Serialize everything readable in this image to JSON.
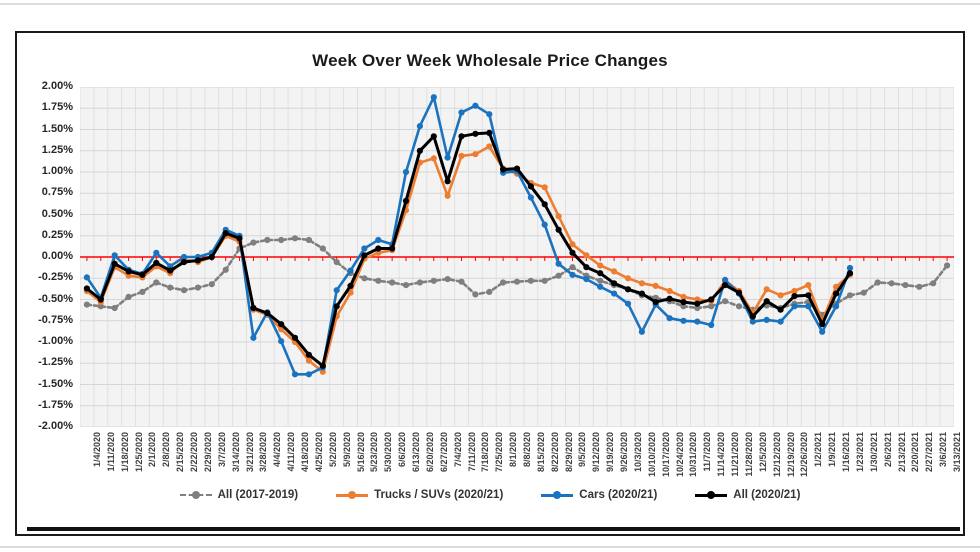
{
  "chart_data": {
    "type": "line",
    "title": "Week Over Week Wholesale Price Changes",
    "ylim": [
      -2.0,
      2.0
    ],
    "grid": true,
    "legend_position": "bottom",
    "zero_line_color": "#ff0000",
    "yticks": [
      "2.00%",
      "1.75%",
      "1.50%",
      "1.25%",
      "1.00%",
      "0.75%",
      "0.50%",
      "0.25%",
      "0.00%",
      "-0.25%",
      "-0.50%",
      "-0.75%",
      "-1.00%",
      "-1.25%",
      "-1.50%",
      "-1.75%",
      "-2.00%"
    ],
    "categories": [
      "1/4/2020",
      "1/11/2020",
      "1/18/2020",
      "1/25/2020",
      "2/1/2020",
      "2/8/2020",
      "2/15/2020",
      "2/22/2020",
      "2/29/2020",
      "3/7/2020",
      "3/14/2020",
      "3/21/2020",
      "3/28/2020",
      "4/4/2020",
      "4/11/2020",
      "4/18/2020",
      "4/25/2020",
      "5/2/2020",
      "5/9/2020",
      "5/16/2020",
      "5/23/2020",
      "5/30/2020",
      "6/6/2020",
      "6/13/2020",
      "6/20/2020",
      "6/27/2020",
      "7/4/2020",
      "7/11/2020",
      "7/18/2020",
      "7/25/2020",
      "8/1/2020",
      "8/8/2020",
      "8/15/2020",
      "8/22/2020",
      "8/29/2020",
      "9/5/2020",
      "9/12/2020",
      "9/19/2020",
      "9/26/2020",
      "10/3/2020",
      "10/10/2020",
      "10/17/2020",
      "10/24/2020",
      "10/31/2020",
      "11/7/2020",
      "11/14/2020",
      "11/21/2020",
      "11/28/2020",
      "12/5/2020",
      "12/12/2020",
      "12/19/2020",
      "12/26/2020",
      "1/2/2021",
      "1/9/2021",
      "1/16/2021",
      "1/23/2021",
      "1/30/2021",
      "2/6/2021",
      "2/13/2021",
      "2/20/2021",
      "2/27/2021",
      "3/6/2021",
      "3/13/2021"
    ],
    "series": [
      {
        "name": "All (2017-2019)",
        "color": "#7f7f7f",
        "style": "dashed",
        "values": [
          -0.56,
          -0.58,
          -0.6,
          -0.47,
          -0.41,
          -0.3,
          -0.36,
          -0.39,
          -0.36,
          -0.32,
          -0.15,
          0.1,
          0.17,
          0.2,
          0.2,
          0.22,
          0.2,
          0.1,
          -0.06,
          -0.19,
          -0.25,
          -0.28,
          -0.3,
          -0.33,
          -0.3,
          -0.28,
          -0.26,
          -0.29,
          -0.44,
          -0.41,
          -0.3,
          -0.29,
          -0.28,
          -0.28,
          -0.22,
          -0.12,
          -0.22,
          -0.28,
          -0.33,
          -0.38,
          -0.45,
          -0.48,
          -0.52,
          -0.58,
          -0.6,
          -0.58,
          -0.52,
          -0.58,
          -0.62,
          -0.57,
          -0.6,
          -0.55,
          -0.53,
          -0.68,
          -0.55,
          -0.45,
          -0.42,
          -0.3,
          -0.31,
          -0.33,
          -0.35,
          -0.31,
          -0.1
        ]
      },
      {
        "name": "Trucks / SUVs (2020/21)",
        "color": "#ed7d31",
        "style": "solid",
        "values": [
          -0.4,
          -0.53,
          -0.12,
          -0.22,
          -0.24,
          -0.11,
          -0.19,
          -0.03,
          -0.06,
          0.0,
          0.25,
          0.18,
          -0.62,
          -0.68,
          -0.85,
          -1.0,
          -1.22,
          -1.35,
          -0.7,
          -0.42,
          -0.02,
          0.05,
          0.08,
          0.55,
          1.11,
          1.16,
          0.72,
          1.19,
          1.21,
          1.3,
          1.04,
          0.98,
          0.87,
          0.82,
          0.48,
          0.15,
          0.02,
          -0.1,
          -0.17,
          -0.25,
          -0.31,
          -0.34,
          -0.4,
          -0.47,
          -0.5,
          -0.52,
          -0.28,
          -0.4,
          -0.66,
          -0.38,
          -0.45,
          -0.4,
          -0.33,
          -0.76,
          -0.35,
          -0.21,
          null,
          null,
          null,
          null,
          null,
          null,
          null
        ]
      },
      {
        "name": "Cars (2020/21)",
        "color": "#1973be",
        "style": "solid",
        "values": [
          -0.24,
          -0.48,
          0.02,
          -0.15,
          -0.2,
          0.05,
          -0.11,
          0.0,
          0.0,
          0.05,
          0.32,
          0.25,
          -0.95,
          -0.65,
          -0.99,
          -1.38,
          -1.38,
          -1.3,
          -0.39,
          -0.16,
          0.1,
          0.2,
          0.15,
          1.0,
          1.54,
          1.88,
          1.17,
          1.7,
          1.78,
          1.68,
          0.99,
          1.01,
          0.7,
          0.38,
          -0.08,
          -0.21,
          -0.26,
          -0.35,
          -0.43,
          -0.55,
          -0.88,
          -0.56,
          -0.72,
          -0.75,
          -0.76,
          -0.8,
          -0.27,
          -0.43,
          -0.76,
          -0.74,
          -0.76,
          -0.58,
          -0.58,
          -0.88,
          -0.58,
          -0.13,
          null,
          null,
          null,
          null,
          null,
          null,
          null
        ]
      },
      {
        "name": "All (2020/21)",
        "color": "#000000",
        "style": "solid",
        "values": [
          -0.37,
          -0.5,
          -0.08,
          -0.17,
          -0.21,
          -0.07,
          -0.16,
          -0.06,
          -0.04,
          0.0,
          0.28,
          0.22,
          -0.6,
          -0.66,
          -0.79,
          -0.95,
          -1.15,
          -1.28,
          -0.58,
          -0.34,
          0.02,
          0.1,
          0.1,
          0.66,
          1.25,
          1.42,
          0.89,
          1.42,
          1.45,
          1.46,
          1.03,
          1.04,
          0.83,
          0.62,
          0.32,
          0.05,
          -0.12,
          -0.19,
          -0.31,
          -0.38,
          -0.43,
          -0.53,
          -0.49,
          -0.53,
          -0.55,
          -0.5,
          -0.33,
          -0.42,
          -0.7,
          -0.52,
          -0.62,
          -0.46,
          -0.45,
          -0.79,
          -0.43,
          -0.19,
          null,
          null,
          null,
          null,
          null,
          null,
          null
        ]
      }
    ]
  }
}
